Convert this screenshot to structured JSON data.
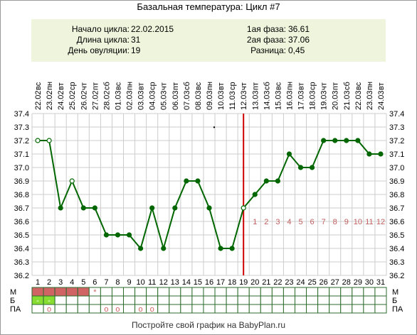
{
  "title": "Базальная температура: Цикл #7",
  "info": {
    "left": [
      {
        "label": "Начало цикла:",
        "value": "22.02.2015"
      },
      {
        "label": "Длина цикла:",
        "value": "31"
      },
      {
        "label": "День овуляции:",
        "value": "19"
      }
    ],
    "right": [
      {
        "label": "1ая фаза:",
        "value": "36.61"
      },
      {
        "label": "2ая фаза:",
        "value": "37.06"
      },
      {
        "label": "Разница:",
        "value": "0,45"
      }
    ]
  },
  "footer": "Постройте свой график на BabyPlan.ru",
  "chart_data": {
    "type": "line",
    "title": "Базальная температура: Цикл #7",
    "x": [
      1,
      2,
      3,
      4,
      5,
      6,
      7,
      8,
      9,
      10,
      11,
      12,
      13,
      14,
      15,
      16,
      17,
      18,
      19,
      20,
      21,
      22,
      23,
      24,
      25,
      26,
      27,
      28,
      29,
      30,
      31
    ],
    "dates": [
      "22.02",
      "23.02",
      "24.02",
      "25.02",
      "26.02",
      "27.02",
      "28.02",
      "01.03",
      "02.03",
      "03.03",
      "04.03",
      "05.03",
      "06.03",
      "07.03",
      "08.03",
      "09.03",
      "10.03",
      "11.03",
      "12.03",
      "13.03",
      "14.03",
      "15.03",
      "16.03",
      "17.03",
      "18.03",
      "19.03",
      "20.03",
      "21.03",
      "22.03",
      "23.03",
      "24.03"
    ],
    "weekdays": [
      "вс",
      "пн",
      "вт",
      "ср",
      "чт",
      "пт",
      "сб",
      "вс",
      "пн",
      "вт",
      "ср",
      "чт",
      "пт",
      "сб",
      "вс",
      "пн",
      "вт",
      "ср",
      "чт",
      "пт",
      "сб",
      "вс",
      "пн",
      "вт",
      "ср",
      "чт",
      "пт",
      "сб",
      "вс",
      "пн",
      "вт"
    ],
    "series": [
      {
        "values": [
          37.2,
          37.2,
          36.7,
          36.9,
          36.7,
          36.7,
          36.5,
          36.5,
          36.5,
          36.4,
          36.7,
          36.4,
          36.7,
          36.9,
          36.9,
          36.7,
          36.4,
          36.4,
          36.7,
          36.8,
          36.9,
          36.9,
          37.1,
          37.0,
          37.0,
          37.2,
          37.2,
          37.2,
          37.2,
          37.1,
          37.1
        ],
        "hollow_days": [
          1,
          2,
          4,
          19
        ]
      }
    ],
    "ylim": [
      36.2,
      37.4
    ],
    "yticks": [
      "36.2",
      "36.3",
      "36.4",
      "36.5",
      "36.6",
      "36.7",
      "36.8",
      "36.9",
      "37.0",
      "37.1",
      "37.2",
      "37.3",
      "37.4"
    ],
    "ovulation_day": 19,
    "phase2_labels": [
      "1",
      "2",
      "3",
      "4",
      "5",
      "6",
      "7",
      "8",
      "9",
      "10",
      "11",
      "12"
    ],
    "moon_day": 16,
    "grid": true,
    "colors": {
      "line": "#006600",
      "grid": "#cccccc",
      "ovulation": "#cc0000",
      "phase_labels": "#c06060",
      "menses": "#d06464",
      "b_cells": "#88dd33",
      "marks": "#d06464",
      "info_bg": "#eef5dc"
    }
  },
  "bottom_rows": [
    {
      "label": "М",
      "right_label": "М",
      "filled_days": [
        1,
        2,
        3,
        4,
        5
      ],
      "cell_marks": [
        {
          "day": 6,
          "text": "*"
        }
      ]
    },
    {
      "label": "Б",
      "right_label": "Б",
      "filled_days": [
        1,
        2
      ],
      "cell_marks": [
        {
          "day": 1,
          "text": "-"
        },
        {
          "day": 2,
          "text": "-"
        }
      ]
    },
    {
      "label": "ПА",
      "right_label": "ПА",
      "filled_days": [],
      "cell_marks": [
        {
          "day": 2,
          "text": "o"
        },
        {
          "day": 7,
          "text": "o"
        },
        {
          "day": 8,
          "text": "o"
        },
        {
          "day": 10,
          "text": "o"
        },
        {
          "day": 11,
          "text": "o"
        }
      ]
    }
  ]
}
